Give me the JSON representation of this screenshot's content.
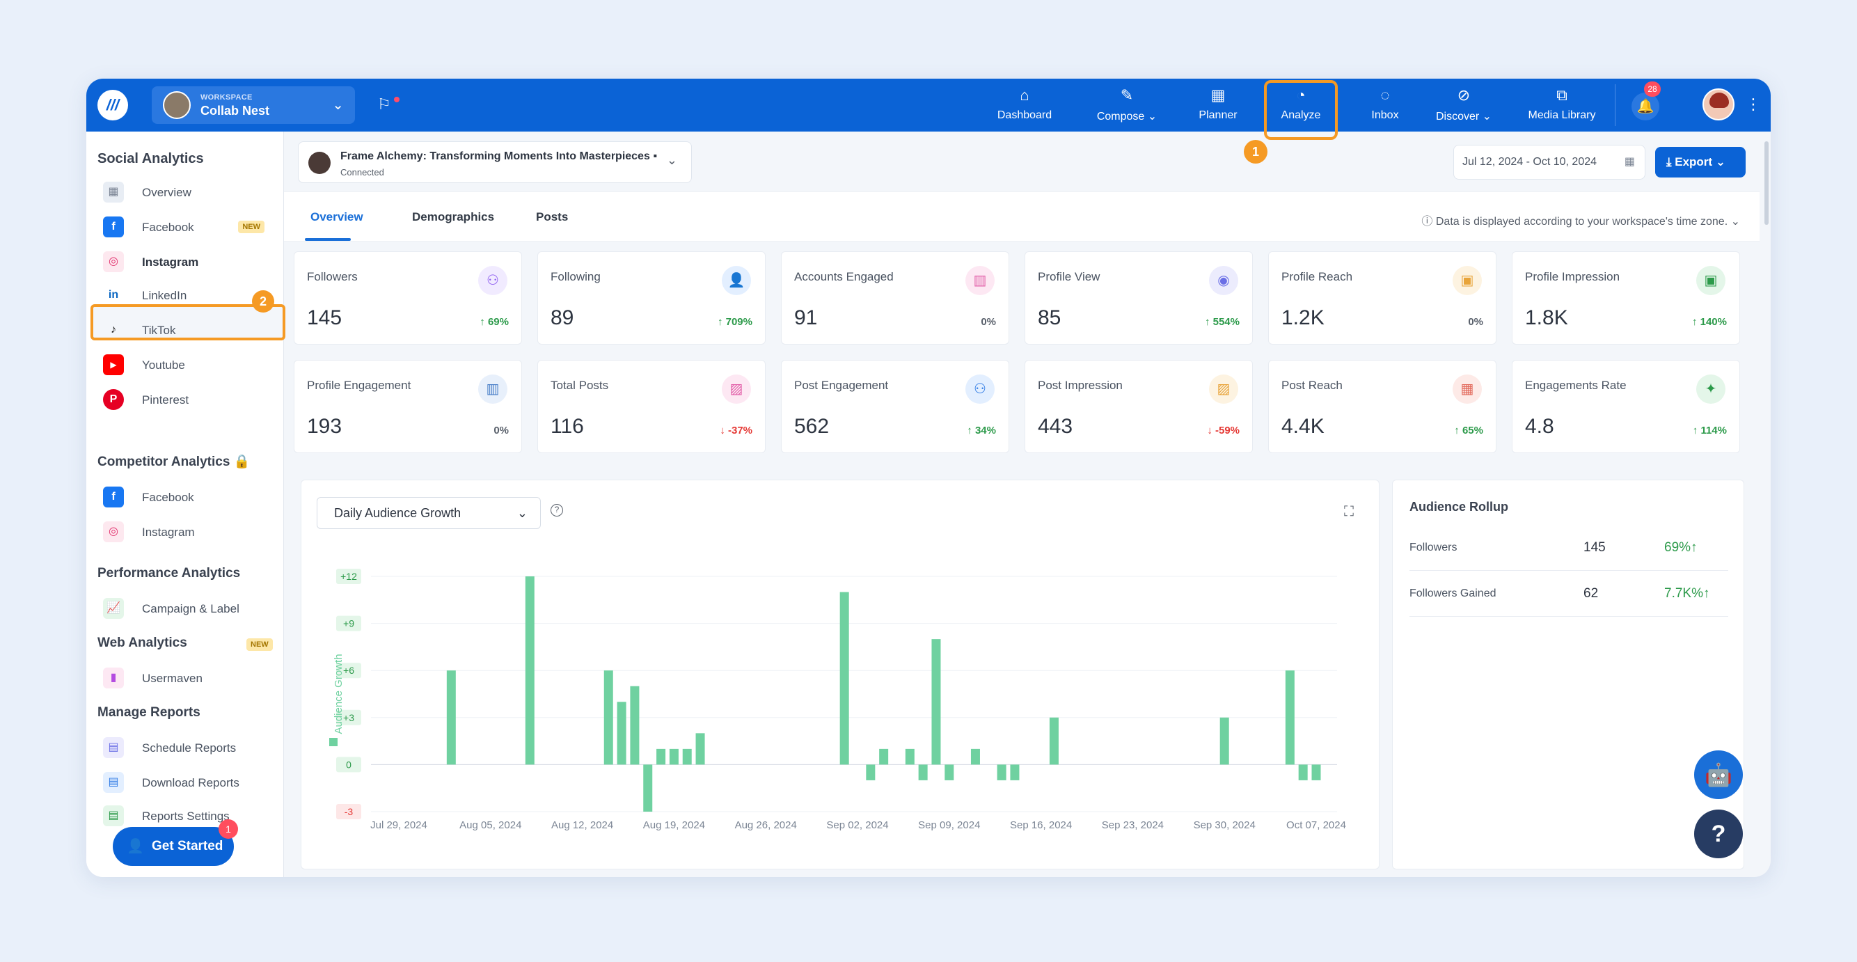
{
  "topbar": {
    "workspace_label": "WORKSPACE",
    "workspace_name": "Collab Nest",
    "nav": [
      {
        "label": "Dashboard",
        "icon": "home-icon"
      },
      {
        "label": "Compose",
        "icon": "pencil-icon"
      },
      {
        "label": "Planner",
        "icon": "calendar-icon"
      },
      {
        "label": "Analyze",
        "icon": "pie-chart-icon"
      },
      {
        "label": "Inbox",
        "icon": "chat-icon"
      },
      {
        "label": "Discover",
        "icon": "compass-icon"
      },
      {
        "label": "Media Library",
        "icon": "images-icon"
      }
    ],
    "notifications": "28",
    "step1": "1"
  },
  "sidebar": {
    "social_heading": "Social Analytics",
    "social_items": [
      {
        "label": "Overview",
        "icon": "grid-icon"
      },
      {
        "label": "Facebook",
        "icon": "facebook-icon",
        "badge": "NEW"
      },
      {
        "label": "Instagram",
        "icon": "instagram-icon"
      },
      {
        "label": "LinkedIn",
        "icon": "linkedin-icon"
      },
      {
        "label": "TikTok",
        "icon": "tiktok-icon"
      },
      {
        "label": "Youtube",
        "icon": "youtube-icon"
      },
      {
        "label": "Pinterest",
        "icon": "pinterest-icon"
      }
    ],
    "step2": "2",
    "competitor_heading": "Competitor Analytics",
    "competitor_items": [
      {
        "label": "Facebook",
        "icon": "facebook-icon"
      },
      {
        "label": "Instagram",
        "icon": "instagram-icon"
      }
    ],
    "performance_heading": "Performance Analytics",
    "performance_items": [
      {
        "label": "Campaign & Label",
        "icon": "campaign-chart-icon"
      }
    ],
    "web_heading": "Web Analytics",
    "web_badge": "NEW",
    "web_items": [
      {
        "label": "Usermaven",
        "icon": "usermaven-icon"
      }
    ],
    "reports_heading": "Manage Reports",
    "reports_items": [
      {
        "label": "Schedule Reports",
        "icon": "schedule-report-icon"
      },
      {
        "label": "Download Reports",
        "icon": "download-report-icon"
      },
      {
        "label": "Reports Settings",
        "icon": "report-settings-icon"
      }
    ],
    "get_started": "Get Started",
    "get_started_badge": "1"
  },
  "header": {
    "account_name": "Frame Alchemy: Transforming Moments Into Masterpieces",
    "account_status": "Connected",
    "date_range": "Jul 12, 2024 - Oct 10, 2024",
    "export_label": "Export",
    "tabs": [
      "Overview",
      "Demographics",
      "Posts"
    ],
    "timezone_note": "Data is displayed according to your workspace's time zone."
  },
  "metrics": [
    {
      "title": "Followers",
      "value": "145",
      "change": "↑ 69%",
      "trend": "up",
      "icon": "followers-icon",
      "color": "#8e5cf0",
      "bg": "#f1ebff"
    },
    {
      "title": "Following",
      "value": "89",
      "change": "↑ 709%",
      "trend": "up",
      "icon": "user-check-icon",
      "color": "#2f7be5",
      "bg": "#e3efff"
    },
    {
      "title": "Accounts Engaged",
      "value": "91",
      "change": "0%",
      "trend": "zero",
      "icon": "bar-chart-icon",
      "color": "#e25ea8",
      "bg": "#fde8f3"
    },
    {
      "title": "Profile View",
      "value": "85",
      "change": "↑ 554%",
      "trend": "up",
      "icon": "eye-icon",
      "color": "#6b6fe6",
      "bg": "#ececfd"
    },
    {
      "title": "Profile Reach",
      "value": "1.2K",
      "change": "0%",
      "trend": "zero",
      "icon": "reach-icon",
      "color": "#e8a43a",
      "bg": "#fdf3e1"
    },
    {
      "title": "Profile Impression",
      "value": "1.8K",
      "change": "↑ 140%",
      "trend": "up",
      "icon": "impression-icon",
      "color": "#2c9a4a",
      "bg": "#e4f6e9"
    },
    {
      "title": "Profile Engagement",
      "value": "193",
      "change": "0%",
      "trend": "zero",
      "icon": "engagement-icon",
      "color": "#4a7fc8",
      "bg": "#e8f0fb"
    },
    {
      "title": "Total Posts",
      "value": "116",
      "change": "↓ -37%",
      "trend": "down",
      "icon": "image-icon",
      "color": "#e25ea8",
      "bg": "#fde8f3"
    },
    {
      "title": "Post Engagement",
      "value": "562",
      "change": "↑ 34%",
      "trend": "up",
      "icon": "group-icon",
      "color": "#2f7be5",
      "bg": "#e3efff"
    },
    {
      "title": "Post Impression",
      "value": "443",
      "change": "↓ -59%",
      "trend": "down",
      "icon": "post-impression-icon",
      "color": "#e8a43a",
      "bg": "#fdf3e1"
    },
    {
      "title": "Post Reach",
      "value": "4.4K",
      "change": "↑ 65%",
      "trend": "up",
      "icon": "post-reach-icon",
      "color": "#e2685a",
      "bg": "#fdeae7"
    },
    {
      "title": "Engagements Rate",
      "value": "4.8",
      "change": "↑ 114%",
      "trend": "up",
      "icon": "rate-icon",
      "color": "#2c9a4a",
      "bg": "#e4f6e9"
    }
  ],
  "chart_panel": {
    "dropdown": "Daily Audience Growth"
  },
  "chart_data": {
    "type": "bar",
    "ylabel": "Audience Growth",
    "ylim": [
      -3,
      12
    ],
    "yticks": [
      "+12",
      "+9",
      "+6",
      "+3",
      "0",
      "-3"
    ],
    "xticks": [
      "Jul 29, 2024",
      "Aug 05, 2024",
      "Aug 12, 2024",
      "Aug 19, 2024",
      "Aug 26, 2024",
      "Sep 02, 2024",
      "Sep 09, 2024",
      "Sep 16, 2024",
      "Sep 23, 2024",
      "Sep 30, 2024",
      "Oct 07, 2024"
    ],
    "bar_color": "#6fd1a0",
    "series": [
      {
        "values": [
          [
            "Aug 02, 2024",
            6
          ],
          [
            "Aug 08, 2024",
            12
          ],
          [
            "Aug 14, 2024",
            6
          ],
          [
            "Aug 15, 2024",
            4
          ],
          [
            "Aug 16, 2024",
            5
          ],
          [
            "Aug 17, 2024",
            -3
          ],
          [
            "Aug 18, 2024",
            1
          ],
          [
            "Aug 19, 2024",
            1
          ],
          [
            "Aug 20, 2024",
            1
          ],
          [
            "Aug 21, 2024",
            2
          ],
          [
            "Sep 01, 2024",
            11
          ],
          [
            "Sep 03, 2024",
            -1
          ],
          [
            "Sep 04, 2024",
            1
          ],
          [
            "Sep 06, 2024",
            1
          ],
          [
            "Sep 07, 2024",
            -1
          ],
          [
            "Sep 08, 2024",
            8
          ],
          [
            "Sep 09, 2024",
            -1
          ],
          [
            "Sep 11, 2024",
            1
          ],
          [
            "Sep 13, 2024",
            -1
          ],
          [
            "Sep 14, 2024",
            -1
          ],
          [
            "Sep 17, 2024",
            3
          ],
          [
            "Sep 30, 2024",
            3
          ],
          [
            "Oct 05, 2024",
            6
          ],
          [
            "Oct 06, 2024",
            -1
          ],
          [
            "Oct 07, 2024",
            -1
          ]
        ]
      }
    ]
  },
  "rollup": {
    "title": "Audience Rollup",
    "rows": [
      {
        "label": "Followers",
        "value": "145",
        "change": "69%↑"
      },
      {
        "label": "Followers Gained",
        "value": "62",
        "change": "7.7K%↑"
      }
    ]
  }
}
